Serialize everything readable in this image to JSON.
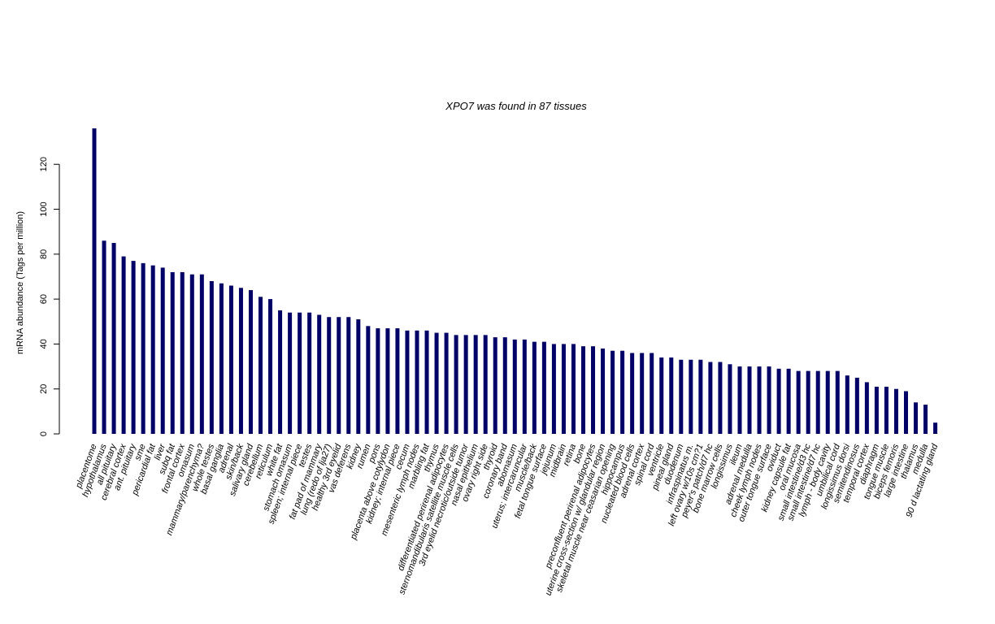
{
  "chart_data": {
    "type": "bar",
    "title": "XPO7  was found in  87  tissues",
    "xlabel": "",
    "ylabel": "mRNA abundance (Tags per million)",
    "ylim": [
      0,
      136
    ],
    "yticks": [
      0,
      20,
      40,
      60,
      80,
      100,
      120
    ],
    "grid": false,
    "legend": "none",
    "bar_color": "#000066",
    "categories": [
      "placentome",
      "hypothalamus",
      "all pituitary",
      "cerebral cortex",
      "ant. pituitary",
      "sme",
      "pericardial fat",
      "liver",
      "subq fat",
      "frontal cortex",
      "omasum",
      "mammary/parenchyma?",
      "whole testes",
      "basal ganglia",
      "adrenal",
      "skin/back",
      "salivary gland",
      "cerebellum",
      "reticulum",
      "white fat",
      "stomach omasum",
      "spleen; internal piece",
      "testes",
      "fat pad of mammary",
      "lung (redo of lja27)",
      "healthy 3rd eyelid",
      "vas deferens",
      "kidney",
      "rumen",
      "pons",
      "placenta above cotylydon",
      "kidney; internal piece",
      "cecum",
      "mesenteric lymph nodes",
      "marbling fat",
      "thymus",
      "differentiated perirenal adipocytes",
      "sternomandibularis satellite muscle cells",
      "3rd eyelid necrotic/outside tumor",
      "nasal epithelium",
      "ovary right side",
      "thyroid",
      "coronary band",
      "abomasum",
      "uterus; intercaruncular",
      "muscle/back",
      "fetal tongue surface",
      "jejunum",
      "midbrain",
      "retina",
      "bone",
      "preconfluent perirenal adipocytes",
      "uterine cross-section w/ glandular region",
      "skeletal muscle near ceasarian opening",
      "hippocampus",
      "nucleated blood cells",
      "adrenal cortex",
      "spinal cord",
      "ventricle",
      "pineal gland",
      "duodenum",
      "infraspinatus m.",
      "left ovary w/10s cm?1",
      "peyer's patch/d7 hc",
      "bone marrow cells",
      "longissimus",
      "ileum",
      "adrenal medulla",
      "cheek lymph nodes",
      "outer tongue surface",
      "oviduct",
      "kidney capsule fat",
      "oral mucosa",
      "small intestine/d3 hc",
      "small intestine/d7 hc",
      "lymph - body cavity",
      "umbilical cord",
      "longissimus dorsi",
      "semitendinosus",
      "temporal cortex",
      "diaphragm",
      "tongue muscle",
      "biceps femoris",
      "large intestine",
      "thalamus",
      "medulla",
      "90 d lactating gland"
    ],
    "values": [
      136,
      86,
      85,
      79,
      77,
      76,
      75,
      74,
      72,
      72,
      71,
      71,
      68,
      67,
      66,
      65,
      64,
      61,
      60,
      55,
      54,
      54,
      54,
      53,
      52,
      52,
      52,
      51,
      48,
      47,
      47,
      47,
      46,
      46,
      46,
      45,
      45,
      44,
      44,
      44,
      44,
      43,
      43,
      42,
      42,
      41,
      41,
      40,
      40,
      40,
      39,
      39,
      38,
      37,
      37,
      36,
      36,
      36,
      34,
      34,
      33,
      33,
      33,
      32,
      32,
      31,
      30,
      30,
      30,
      30,
      29,
      29,
      28,
      28,
      28,
      28,
      28,
      26,
      25,
      23,
      21,
      21,
      20,
      19,
      14,
      13,
      5
    ]
  }
}
